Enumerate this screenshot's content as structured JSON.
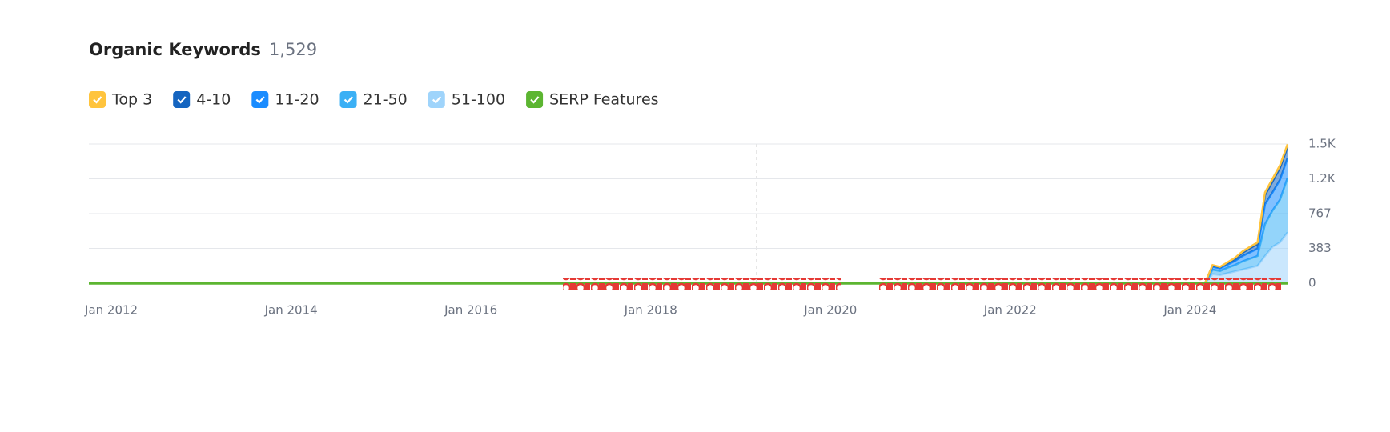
{
  "chart_data": {
    "type": "area",
    "title": "Organic Keywords",
    "subtitle": "1,529",
    "stacked": true,
    "x": [
      "2024-03",
      "2024-04",
      "2024-05",
      "2024-06",
      "2024-07",
      "2024-08",
      "2024-09",
      "2024-10",
      "2024-11",
      "2024-12",
      "2025-01",
      "2025-02"
    ],
    "series": [
      {
        "name": "Top 3",
        "color": "#ffc43d",
        "values": [
          0,
          5,
          5,
          7,
          10,
          15,
          15,
          20,
          30,
          30,
          30,
          29
        ]
      },
      {
        "name": "4-10",
        "color": "#1565c0",
        "values": [
          0,
          15,
          12,
          18,
          25,
          35,
          45,
          50,
          100,
          120,
          130,
          120
        ]
      },
      {
        "name": "11-20",
        "color": "#1a8cff",
        "values": [
          0,
          30,
          28,
          35,
          45,
          60,
          70,
          80,
          220,
          200,
          220,
          220
        ]
      },
      {
        "name": "21-50",
        "color": "#3bb0f5",
        "values": [
          0,
          50,
          45,
          60,
          70,
          90,
          100,
          110,
          350,
          400,
          470,
          600
        ]
      },
      {
        "name": "51-100",
        "color": "#9fd4fb",
        "values": [
          0,
          100,
          90,
          110,
          130,
          150,
          170,
          190,
          300,
          400,
          450,
          560
        ]
      },
      {
        "name": "SERP Features",
        "color": "#5cb531",
        "type": "line",
        "x": [
          "2011-10",
          "2025-02"
        ],
        "values": [
          0,
          0
        ]
      }
    ],
    "xlim": [
      "2011-10",
      "2025-02"
    ],
    "xticks": [
      {
        "value": "2012-01",
        "label": "Jan 2012"
      },
      {
        "value": "2014-01",
        "label": "Jan 2014"
      },
      {
        "value": "2016-01",
        "label": "Jan 2016"
      },
      {
        "value": "2018-01",
        "label": "Jan 2018"
      },
      {
        "value": "2020-01",
        "label": "Jan 2020"
      },
      {
        "value": "2022-01",
        "label": "Jan 2022"
      },
      {
        "value": "2024-01",
        "label": "Jan 2024"
      }
    ],
    "ylim": [
      0,
      1533
    ],
    "yticks": [
      0,
      383,
      767,
      {
        "value": 1150,
        "label": "1.2K"
      },
      {
        "value": 1533,
        "label": "1.5K"
      }
    ],
    "grid": true
  }
}
